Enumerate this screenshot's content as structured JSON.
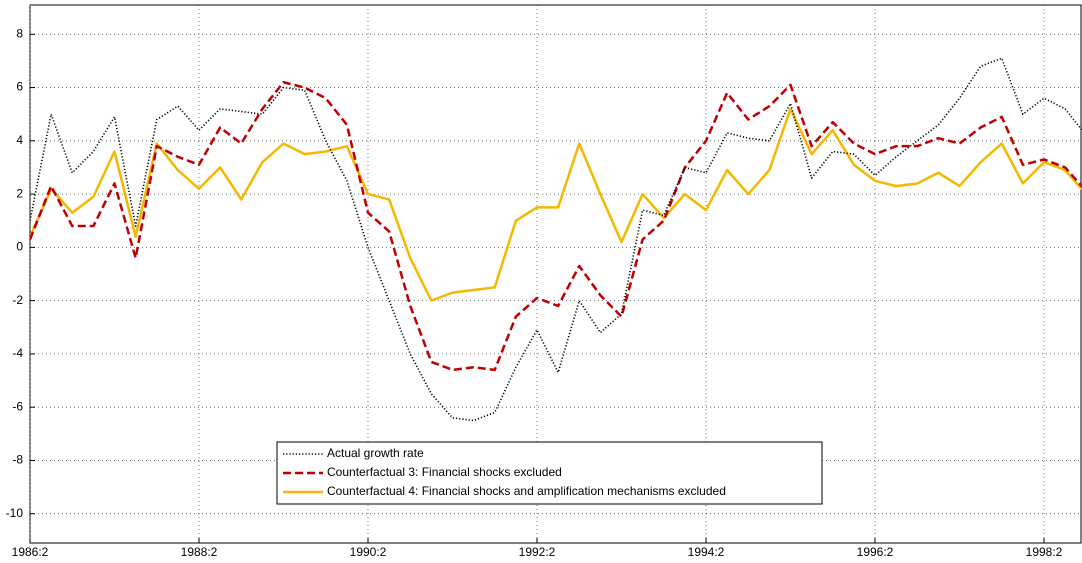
{
  "chart_data": {
    "type": "line",
    "categories": [
      "1986:2",
      null,
      null,
      null,
      null,
      null,
      null,
      null,
      "1988:2",
      null,
      null,
      null,
      null,
      null,
      null,
      null,
      "1990:2",
      null,
      null,
      null,
      null,
      null,
      null,
      null,
      "1992:2",
      null,
      null,
      null,
      null,
      null,
      null,
      null,
      "1994:2",
      null,
      null,
      null,
      null,
      null,
      null,
      null,
      "1996:2",
      null,
      null,
      null,
      null,
      null,
      null,
      null,
      "1998:2",
      null,
      null
    ],
    "series": [
      {
        "name": "Actual growth rate",
        "color": "#000000",
        "style": "dotted",
        "values": [
          1.0,
          5.0,
          2.8,
          3.6,
          4.9,
          0.8,
          4.8,
          5.3,
          4.4,
          5.2,
          5.1,
          5.0,
          6.0,
          5.9,
          4.0,
          2.5,
          0.0,
          -2.0,
          -4.0,
          -5.5,
          -6.4,
          -6.5,
          -6.2,
          -4.5,
          -3.1,
          -4.7,
          -2.0,
          -3.2,
          -2.5,
          1.4,
          1.2,
          3.0,
          2.8,
          4.3,
          4.1,
          4.0,
          5.4,
          2.6,
          3.6,
          3.5,
          2.7,
          3.4,
          4.0,
          4.6,
          5.6,
          6.8,
          7.1,
          5.0,
          5.6,
          5.2,
          4.2
        ]
      },
      {
        "name": "Counterfactual 3: Financial shocks excluded",
        "color": "#c00000",
        "style": "dashed",
        "values": [
          0.3,
          2.3,
          0.8,
          0.8,
          2.4,
          -0.4,
          3.8,
          3.4,
          3.1,
          4.5,
          3.9,
          5.2,
          6.2,
          6.0,
          5.6,
          4.6,
          1.3,
          0.6,
          -2.2,
          -4.3,
          -4.6,
          -4.5,
          -4.6,
          -2.6,
          -1.9,
          -2.2,
          -0.7,
          -1.8,
          -2.6,
          0.3,
          1.0,
          3.0,
          4.0,
          5.8,
          4.8,
          5.3,
          6.1,
          3.8,
          4.7,
          3.9,
          3.5,
          3.8,
          3.8,
          4.1,
          3.9,
          4.5,
          4.9,
          3.1,
          3.3,
          3.0,
          2.1
        ]
      },
      {
        "name": "Counterfactual 4: Financial shocks and amplification mechanisms excluded",
        "color": "#f5b800",
        "style": "solid",
        "values": [
          0.4,
          2.2,
          1.3,
          1.9,
          3.6,
          0.4,
          3.9,
          2.9,
          2.2,
          3.0,
          1.8,
          3.2,
          3.9,
          3.5,
          3.6,
          3.8,
          2.0,
          1.8,
          -0.4,
          -2.0,
          -1.7,
          -1.6,
          -1.5,
          1.0,
          1.5,
          1.5,
          3.9,
          2.0,
          0.2,
          2.0,
          1.1,
          2.0,
          1.4,
          2.9,
          2.0,
          2.9,
          5.2,
          3.5,
          4.4,
          3.1,
          2.5,
          2.3,
          2.4,
          2.8,
          2.3,
          3.2,
          3.9,
          2.4,
          3.2,
          2.9,
          2.0
        ]
      }
    ],
    "ylim": [
      -11.1,
      9.1
    ],
    "yticks": [
      -10,
      -8,
      -6,
      -4,
      -2,
      0,
      2,
      4,
      6,
      8
    ],
    "grid": true,
    "legend": "lower center"
  }
}
